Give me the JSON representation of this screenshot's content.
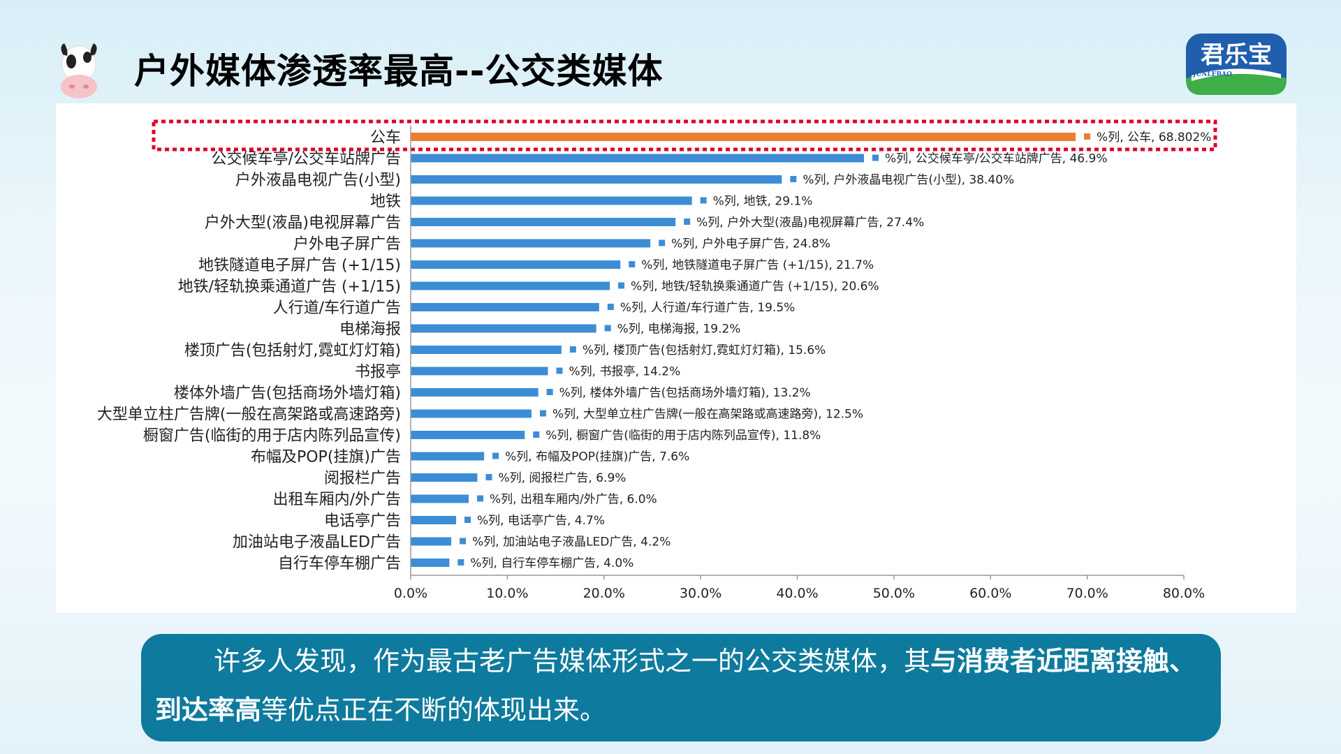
{
  "title": "户外媒体渗透率最高--公交类媒体",
  "logo": {
    "brand": "君乐宝",
    "sub": "JUNLEBAO"
  },
  "colors": {
    "highlight": "#ed7d31",
    "bar": "#3c8dd6",
    "highlight_box": "#e0002a",
    "caption_bg": "#0e7a9d"
  },
  "chart_data": {
    "type": "bar",
    "orientation": "horizontal",
    "categories": [
      "公车",
      "公交候车亭/公交车站牌广告",
      "户外液晶电视广告(小型)",
      "地铁",
      "户外大型(液晶)电视屏幕广告",
      "户外电子屏广告",
      "地铁隧道电子屏广告 (+1/15)",
      "地铁/轻轨换乘通道广告 (+1/15)",
      "人行道/车行道广告",
      "电梯海报",
      "楼顶广告(包括射灯,霓虹灯灯箱)",
      "书报亭",
      "楼体外墙广告(包括商场外墙灯箱)",
      "大型单立柱广告牌(一般在高架路或高速路旁)",
      "橱窗广告(临街的用于店内陈列品宣传)",
      "布幅及POP(挂旗)广告",
      "阅报栏广告",
      "出租车厢内/外广告",
      "电话亭广告",
      "加油站电子液晶LED广告",
      "自行车停车棚广告"
    ],
    "values": [
      68.802,
      46.9,
      38.4,
      29.1,
      27.4,
      24.8,
      21.7,
      20.6,
      19.5,
      19.2,
      15.6,
      14.2,
      13.2,
      12.5,
      11.8,
      7.6,
      6.9,
      6.0,
      4.7,
      4.2,
      4.0
    ],
    "data_labels": [
      "%列, 公车, 68.802%",
      "%列, 公交候车亭/公交车站牌广告, 46.9%",
      "%列, 户外液晶电视广告(小型), 38.40%",
      "%列, 地铁, 29.1%",
      "%列, 户外大型(液晶)电视屏幕广告, 27.4%",
      "%列, 户外电子屏广告, 24.8%",
      "%列, 地铁隧道电子屏广告 (+1/15), 21.7%",
      "%列, 地铁/轻轨换乘通道广告 (+1/15), 20.6%",
      "%列, 人行道/车行道广告, 19.5%",
      "%列, 电梯海报, 19.2%",
      "%列, 楼顶广告(包括射灯,霓虹灯灯箱), 15.6%",
      "%列, 书报亭, 14.2%",
      "%列, 楼体外墙广告(包括商场外墙灯箱), 13.2%",
      "%列, 大型单立柱广告牌(一般在高架路或高速路旁), 12.5%",
      "%列, 橱窗广告(临街的用于店内陈列品宣传), 11.8%",
      "%列, 布幅及POP(挂旗)广告, 7.6%",
      "%列, 阅报栏广告, 6.9%",
      "%列, 出租车厢内/外广告, 6.0%",
      "%列, 电话亭广告, 4.7%",
      "%列, 加油站电子液晶LED广告, 4.2%",
      "%列, 自行车停车棚广告, 4.0%"
    ],
    "highlight_index": 0,
    "xlim": [
      0,
      80
    ],
    "xticks": [
      0,
      10,
      20,
      30,
      40,
      50,
      60,
      70,
      80
    ],
    "xtick_labels": [
      "0.0%",
      "10.0%",
      "20.0%",
      "30.0%",
      "40.0%",
      "50.0%",
      "60.0%",
      "70.0%",
      "80.0%"
    ],
    "grid": false,
    "legend": "none"
  },
  "caption": {
    "part1": "许多人发现，作为最古老广告媒体形式之一的公交类媒体，其",
    "bold1": "与消费者近距离接触、到达率高",
    "part2": "等优点正在不断的体现出来。"
  }
}
